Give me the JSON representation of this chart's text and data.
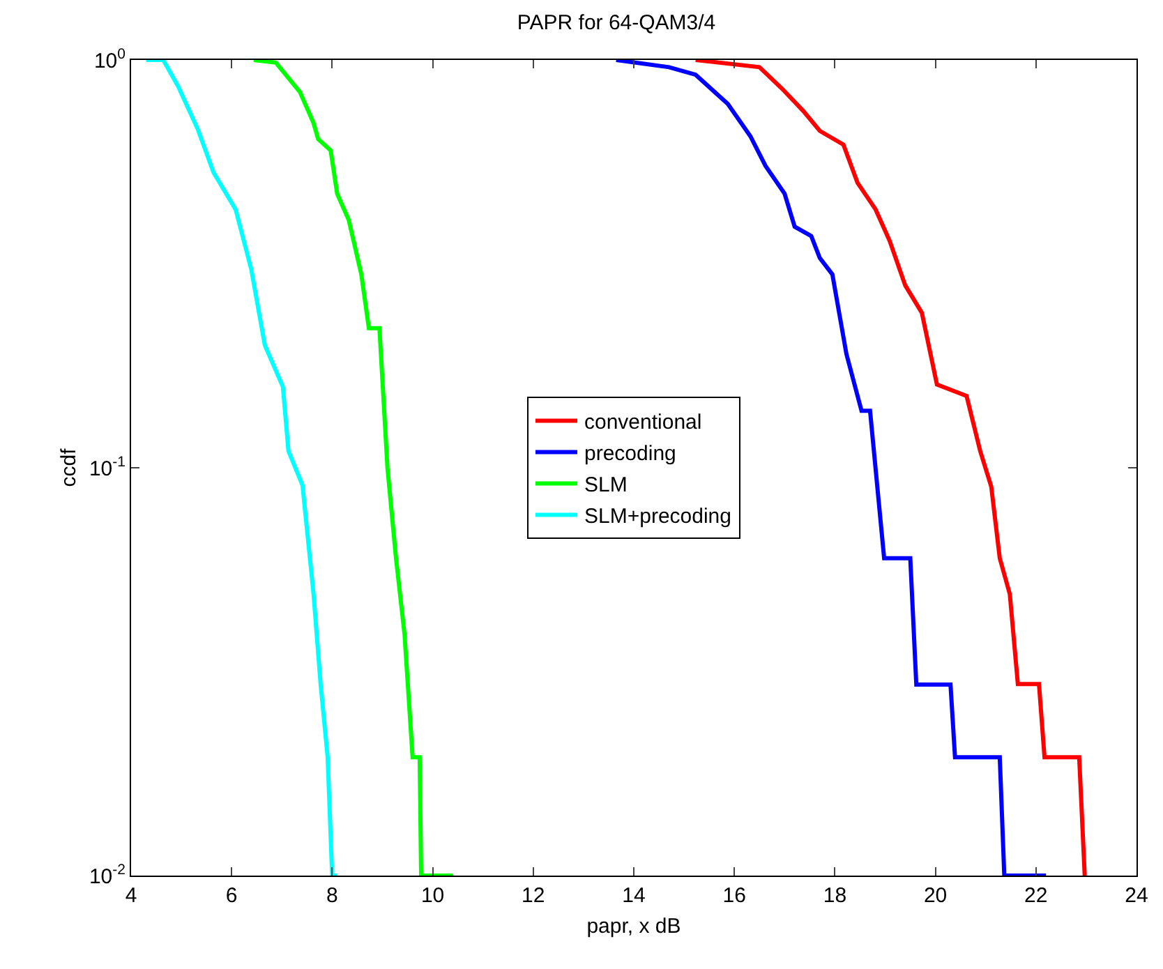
{
  "chart_data": {
    "type": "line",
    "title": "PAPR for 64-QAM3/4",
    "xlabel": "papr, x dB",
    "ylabel": "ccdf",
    "log": "y",
    "grid": false,
    "legend": "center",
    "marker": "none",
    "line_style": "solid",
    "xlim": [
      4,
      24
    ],
    "xticks": [
      4,
      6,
      8,
      10,
      12,
      14,
      16,
      18,
      20,
      22,
      24
    ],
    "ylim": [
      0.01,
      1
    ],
    "yticks": [
      {
        "value": 1,
        "label": "10$^{0}$"
      },
      {
        "value": 0.1,
        "label": "10$^{-1}$"
      },
      {
        "value": 0.01,
        "label": "10$^{-2}$"
      }
    ],
    "series": [
      {
        "name": "conventional",
        "color": "#ff0000",
        "x": [
          15.23,
          16.5,
          16.95,
          17.37,
          17.7,
          18.17,
          18.45,
          18.81,
          19.09,
          19.4,
          19.73,
          20.03,
          20.62,
          20.89,
          21.11,
          21.28,
          21.48,
          21.64,
          22.06,
          22.17,
          22.86,
          22.97,
          23.0
        ],
        "values": [
          1,
          0.96,
          0.85,
          0.75,
          0.67,
          0.62,
          0.5,
          0.43,
          0.36,
          0.28,
          0.24,
          0.16,
          0.15,
          0.11,
          0.09,
          0.06,
          0.049,
          0.0295,
          0.0295,
          0.0195,
          0.0195,
          0.01,
          0.01
        ]
      },
      {
        "name": "precoding",
        "color": "#0000ff",
        "x": [
          13.65,
          14.7,
          15.23,
          15.87,
          16.32,
          16.62,
          17.0,
          17.2,
          17.53,
          17.7,
          17.95,
          18.23,
          18.53,
          18.7,
          18.98,
          19.5,
          19.62,
          20.3,
          20.39,
          21.28,
          21.37,
          22.2
        ],
        "values": [
          1,
          0.96,
          0.92,
          0.78,
          0.65,
          0.55,
          0.47,
          0.39,
          0.37,
          0.327,
          0.298,
          0.19,
          0.138,
          0.138,
          0.06,
          0.06,
          0.0294,
          0.0294,
          0.0195,
          0.0195,
          0.01,
          0.01
        ]
      },
      {
        "name": "SLM",
        "color": "#00ff00",
        "x": [
          6.44,
          6.88,
          7.36,
          7.63,
          7.72,
          7.97,
          8.1,
          8.33,
          8.58,
          8.73,
          8.94,
          9.1,
          9.27,
          9.44,
          9.6,
          9.74,
          9.77,
          10.4
        ],
        "values": [
          1,
          0.985,
          0.834,
          0.7,
          0.64,
          0.6,
          0.47,
          0.405,
          0.298,
          0.22,
          0.22,
          0.1,
          0.06,
          0.039,
          0.0195,
          0.0195,
          0.01,
          0.01
        ]
      },
      {
        "name": "SLM+precoding",
        "color": "#00ffff",
        "x": [
          4.3,
          4.64,
          4.94,
          5.33,
          5.64,
          6.08,
          6.39,
          6.66,
          7.02,
          7.13,
          7.41,
          7.63,
          7.77,
          7.91,
          8.0,
          8.1
        ],
        "values": [
          1,
          1,
          0.86,
          0.675,
          0.53,
          0.43,
          0.307,
          0.2,
          0.158,
          0.11,
          0.0906,
          0.049,
          0.0295,
          0.0195,
          0.01,
          0.01
        ]
      }
    ]
  }
}
